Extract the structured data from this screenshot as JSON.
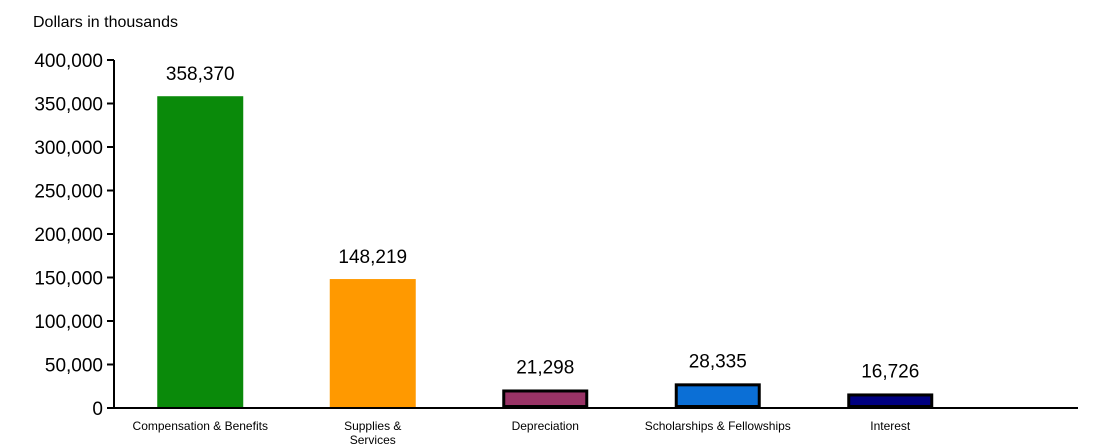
{
  "chart_data": {
    "type": "bar",
    "ylabel": "Dollars in thousands",
    "ylim": [
      0,
      400000
    ],
    "yticks": [
      0,
      50000,
      100000,
      150000,
      200000,
      250000,
      300000,
      350000,
      400000
    ],
    "ytick_labels": [
      "0",
      "50,000",
      "100,000",
      "150,000",
      "200,000",
      "250,000",
      "300,000",
      "350,000",
      "400,000"
    ],
    "categories": [
      [
        "Compensation & Benefits"
      ],
      [
        "Supplies &",
        "Services"
      ],
      [
        "Depreciation"
      ],
      [
        "Scholarships & Fellowships"
      ],
      [
        "Interest"
      ]
    ],
    "values": [
      358370,
      148219,
      21298,
      28335,
      16726
    ],
    "data_labels": [
      "358,370",
      "148,219",
      "21,298",
      "28,335",
      "16,726"
    ],
    "colors": [
      "#0a8a0a",
      "#ff9900",
      "#993366",
      "#0b6fd6",
      "#000080"
    ],
    "outlined": [
      false,
      false,
      true,
      true,
      true
    ],
    "grid": false,
    "legend": "none"
  }
}
